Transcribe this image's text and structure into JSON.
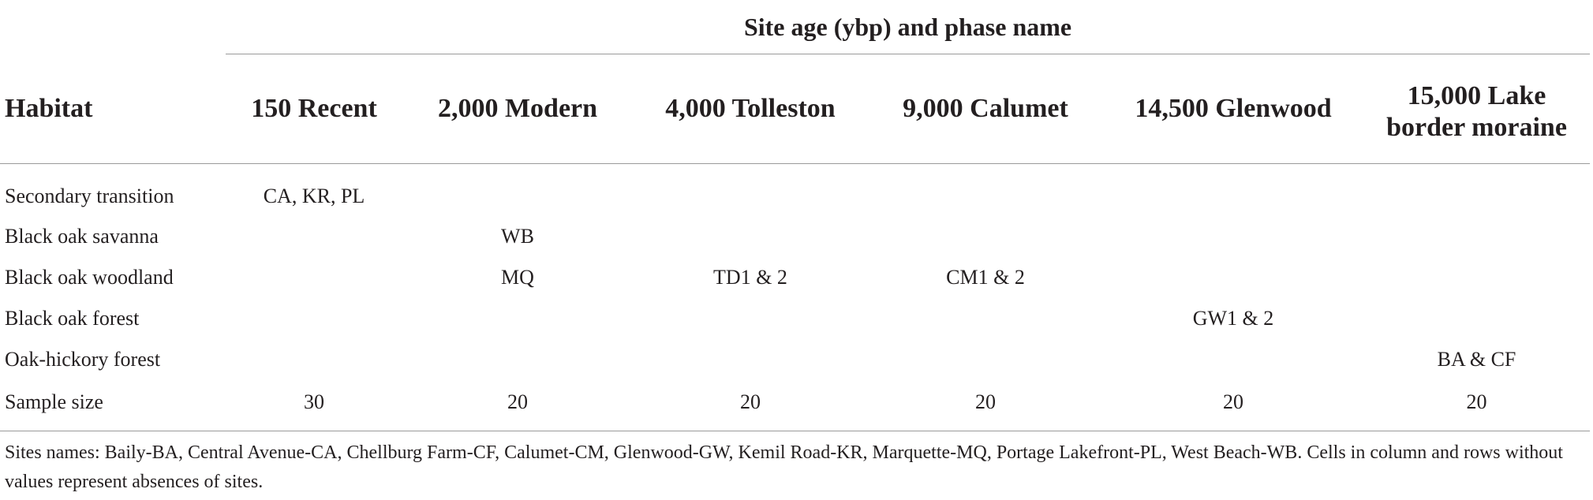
{
  "table": {
    "super_header": "Site age (ybp) and phase name",
    "columns": [
      "Habitat",
      "150 Recent",
      "2,000 Modern",
      "4,000 Tolleston",
      "9,000 Calumet",
      "14,500 Glenwood",
      "15,000 Lake border moraine"
    ],
    "last_column_lines": [
      "15,000 Lake",
      "border moraine"
    ],
    "rows": [
      [
        "Secondary transition",
        "CA, KR, PL",
        "",
        "",
        "",
        "",
        ""
      ],
      [
        "Black oak savanna",
        "",
        "WB",
        "",
        "",
        "",
        ""
      ],
      [
        "Black oak woodland",
        "",
        "MQ",
        "TD1 & 2",
        "CM1 & 2",
        "",
        ""
      ],
      [
        "Black oak forest",
        "",
        "",
        "",
        "",
        "GW1 & 2",
        ""
      ],
      [
        "Oak-hickory forest",
        "",
        "",
        "",
        "",
        "",
        "BA & CF"
      ],
      [
        "Sample size",
        "30",
        "20",
        "20",
        "20",
        "20",
        "20"
      ]
    ]
  },
  "footnote": "Sites names: Baily-BA, Central Avenue-CA, Chellburg Farm-CF, Calumet-CM, Glenwood-GW, Kemil Road-KR, Marquette-MQ, Portage Lakefront-PL, West Beach-WB. Cells in column and rows without values represent absences of sites."
}
